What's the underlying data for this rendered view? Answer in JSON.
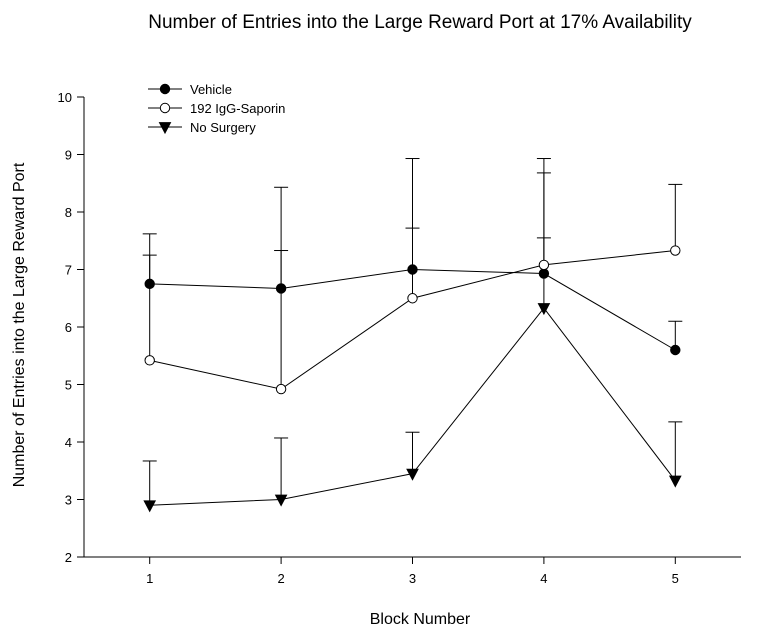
{
  "chart_data": {
    "type": "line",
    "title": "Number of Entries into the Large Reward Port at 17% Availability",
    "xlabel": "Block Number",
    "ylabel": "Number of Entries into the Large Reward Port",
    "x": [
      1,
      2,
      3,
      4,
      5
    ],
    "xlim": [
      0.5,
      5.5
    ],
    "ylim": [
      2,
      10
    ],
    "xticks": [
      "1",
      "2",
      "3",
      "4",
      "5"
    ],
    "yticks": [
      "2",
      "3",
      "4",
      "5",
      "6",
      "7",
      "8",
      "9",
      "10"
    ],
    "grid": false,
    "legend_position": "top-left",
    "series": [
      {
        "name": "Vehicle",
        "marker": "filled-circle",
        "values": [
          6.75,
          6.67,
          7.0,
          6.93,
          5.6
        ],
        "error_upper": [
          7.62,
          8.43,
          8.93,
          8.93,
          6.1
        ]
      },
      {
        "name": "192 IgG-Saporin",
        "marker": "open-circle",
        "values": [
          5.42,
          4.92,
          6.5,
          7.08,
          7.33
        ],
        "error_upper": [
          7.25,
          7.33,
          7.72,
          8.68,
          8.48
        ]
      },
      {
        "name": "No Surgery",
        "marker": "filled-triangle-down",
        "values": [
          2.9,
          3.0,
          3.45,
          6.33,
          3.33
        ],
        "error_upper": [
          3.67,
          4.07,
          4.17,
          7.55,
          4.35
        ]
      }
    ]
  }
}
